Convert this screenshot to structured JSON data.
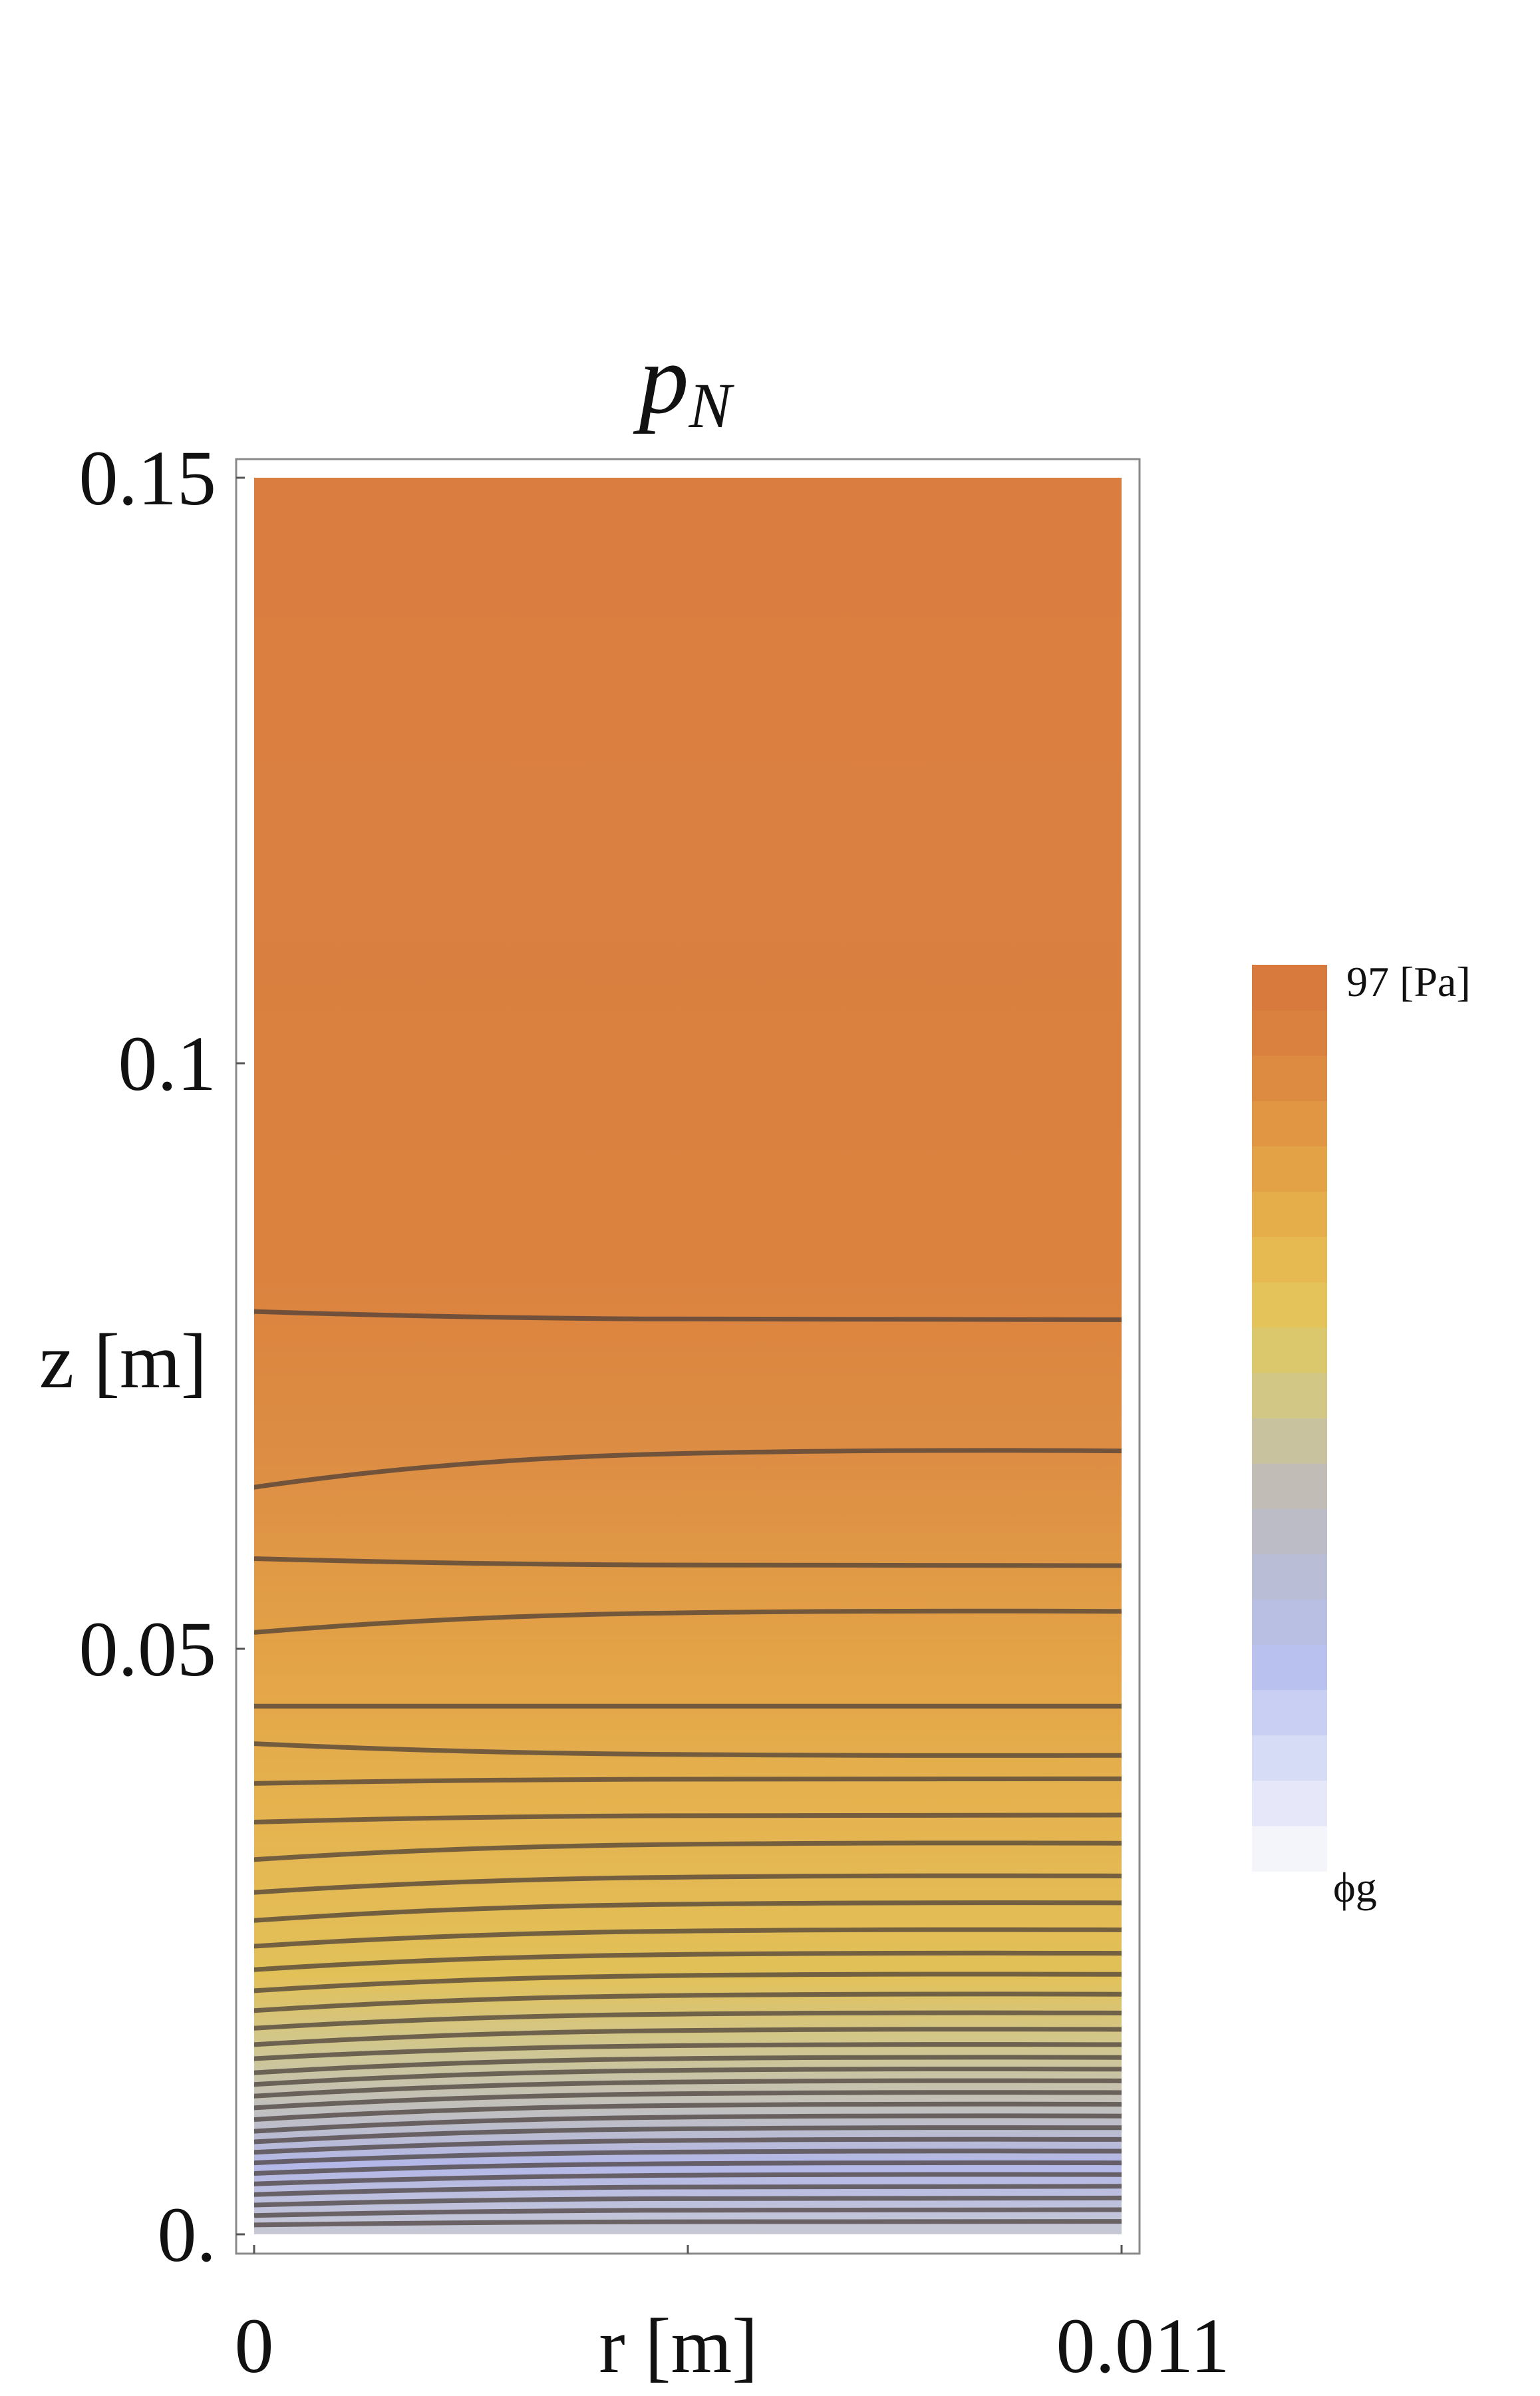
{
  "chart_data": {
    "type": "heatmap",
    "title": {
      "symbol": "p",
      "subscript": "N"
    },
    "xlabel": "r [m]",
    "ylabel": "z [m]",
    "xlim": [
      0,
      0.011
    ],
    "ylim": [
      0,
      0.15
    ],
    "x_tick_labels": [
      "0",
      "0.011"
    ],
    "y_ticks": [
      0,
      0.05,
      0.1,
      0.15
    ],
    "y_tick_labels": [
      "0.",
      "0.05",
      "0.1",
      "0.15"
    ],
    "grid": false,
    "legend_position": "right",
    "colorbar": {
      "max_label": "97 [Pa]",
      "min_label": "ϕg",
      "colors": [
        "#f4f4fb",
        "#e6e8f9",
        "#d7dcf6",
        "#c9cff2",
        "#b9c1ef",
        "#b9bfe2",
        "#b9bdd5",
        "#bcbcc7",
        "#c1bcb6",
        "#c8c29f",
        "#d2c785",
        "#dbc86c",
        "#e4c45a",
        "#e6ba50",
        "#e6ae4b",
        "#e3a246",
        "#e09643",
        "#dd8b41",
        "#db813f",
        "#d87a3e"
      ]
    },
    "field_color_stops": [
      {
        "z": 0.0,
        "color": "#c7c8d4"
      },
      {
        "z": 0.006,
        "color": "#b3b8e8"
      },
      {
        "z": 0.01,
        "color": "#bfbfc5"
      },
      {
        "z": 0.016,
        "color": "#d0c78f"
      },
      {
        "z": 0.022,
        "color": "#e2c159"
      },
      {
        "z": 0.035,
        "color": "#e5b450"
      },
      {
        "z": 0.05,
        "color": "#e3a246"
      },
      {
        "z": 0.065,
        "color": "#dd8f44"
      },
      {
        "z": 0.082,
        "color": "#db823f"
      },
      {
        "z": 0.15,
        "color": "#d97e40"
      }
    ],
    "contours": [
      {
        "z_r0": 0.0008,
        "z_rmax": 0.0011
      },
      {
        "z_r0": 0.0016,
        "z_rmax": 0.0021
      },
      {
        "z_r0": 0.0025,
        "z_rmax": 0.0031
      },
      {
        "z_r0": 0.0034,
        "z_rmax": 0.0041
      },
      {
        "z_r0": 0.0043,
        "z_rmax": 0.0051
      },
      {
        "z_r0": 0.0052,
        "z_rmax": 0.0061
      },
      {
        "z_r0": 0.0061,
        "z_rmax": 0.0071
      },
      {
        "z_r0": 0.007,
        "z_rmax": 0.0081
      },
      {
        "z_r0": 0.0079,
        "z_rmax": 0.0091
      },
      {
        "z_r0": 0.0088,
        "z_rmax": 0.0101
      },
      {
        "z_r0": 0.0098,
        "z_rmax": 0.0111
      },
      {
        "z_r0": 0.0108,
        "z_rmax": 0.0121
      },
      {
        "z_r0": 0.0118,
        "z_rmax": 0.0131
      },
      {
        "z_r0": 0.0128,
        "z_rmax": 0.0141
      },
      {
        "z_r0": 0.0138,
        "z_rmax": 0.0151
      },
      {
        "z_r0": 0.015,
        "z_rmax": 0.0162
      },
      {
        "z_r0": 0.0162,
        "z_rmax": 0.0175
      },
      {
        "z_r0": 0.0176,
        "z_rmax": 0.0189
      },
      {
        "z_r0": 0.0191,
        "z_rmax": 0.0205
      },
      {
        "z_r0": 0.0208,
        "z_rmax": 0.0222
      },
      {
        "z_r0": 0.0226,
        "z_rmax": 0.024
      },
      {
        "z_r0": 0.0246,
        "z_rmax": 0.026
      },
      {
        "z_r0": 0.0268,
        "z_rmax": 0.0283
      },
      {
        "z_r0": 0.0292,
        "z_rmax": 0.0306
      },
      {
        "z_r0": 0.032,
        "z_rmax": 0.0334
      },
      {
        "z_r0": 0.0352,
        "z_rmax": 0.0358
      },
      {
        "z_r0": 0.0385,
        "z_rmax": 0.0389
      },
      {
        "z_r0": 0.0419,
        "z_rmax": 0.0409
      },
      {
        "z_r0": 0.0451,
        "z_rmax": 0.0451
      },
      {
        "z_r0": 0.0514,
        "z_rmax": 0.0532
      },
      {
        "z_r0": 0.0577,
        "z_rmax": 0.0571
      },
      {
        "z_r0": 0.0638,
        "z_rmax": 0.0669
      },
      {
        "z_r0": 0.0788,
        "z_rmax": 0.0781
      }
    ]
  }
}
